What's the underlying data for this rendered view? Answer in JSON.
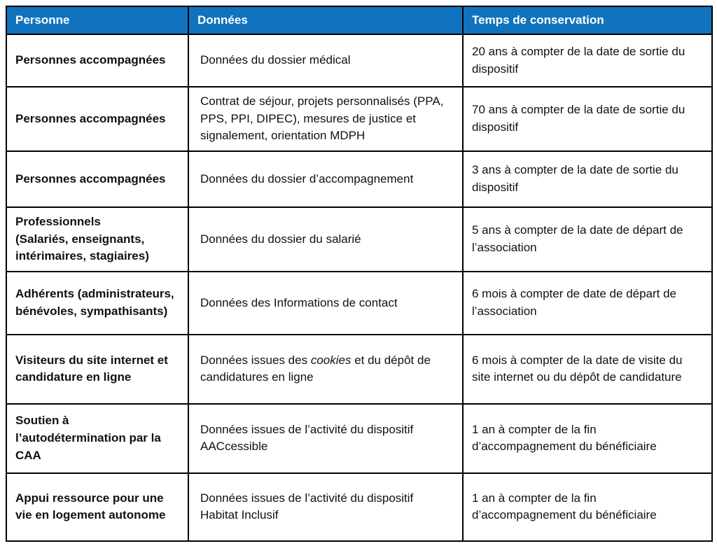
{
  "colors": {
    "header_bg": "#1173BD",
    "header_text": "#FFFFFF",
    "border": "#000000",
    "body_text": "#111111"
  },
  "table": {
    "headers": {
      "personne": "Personne",
      "donnees": "Données",
      "temps": "Temps de conservation"
    },
    "rows": [
      {
        "personne": "Personnes accompagnées",
        "donnees": [
          {
            "text": "Données du dossier médical",
            "italic": false
          }
        ],
        "temps": "20 ans à compter de la date de sortie du dispositif"
      },
      {
        "personne": "Personnes accompagnées",
        "donnees": [
          {
            "text": "Contrat de séjour, projets personnalisés (PPA, PPS, PPI, DIPEC), mesures de justice et signalement, orientation MDPH",
            "italic": false
          }
        ],
        "temps": "70 ans à compter de la date de sortie du dispositif"
      },
      {
        "personne": "Personnes accompagnées",
        "donnees": [
          {
            "text": "Données du dossier d’accompagnement",
            "italic": false
          }
        ],
        "temps": "3 ans à compter de la date de sortie du dispositif"
      },
      {
        "personne": "Professionnels\n(Salariés, enseignants, intérimaires, stagiaires)",
        "donnees": [
          {
            "text": "Données du dossier du salarié",
            "italic": false
          }
        ],
        "temps": "5 ans à compter de la date de départ de l’association"
      },
      {
        "personne": "Adhérents (administrateurs, bénévoles, sympathisants)",
        "donnees": [
          {
            "text": "Données des Informations de contact",
            "italic": false
          }
        ],
        "temps": "6 mois à compter de date de départ de l’association"
      },
      {
        "personne": "Visiteurs du site internet et candidature en ligne",
        "donnees": [
          {
            "text": "Données issues des ",
            "italic": false
          },
          {
            "text": "cookies",
            "italic": true
          },
          {
            "text": " et du dépôt de candidatures en ligne",
            "italic": false
          }
        ],
        "temps": "6 mois à compter de la date de visite du site internet ou du dépôt de candidature"
      },
      {
        "personne": "Soutien à l’autodétermination par la CAA",
        "donnees": [
          {
            "text": "Données issues de l’activité du dispositif AACcessible",
            "italic": false
          }
        ],
        "temps": "1 an à compter de la fin d’accompagnement du bénéficiaire"
      },
      {
        "personne": "Appui ressource pour une vie en logement autonome",
        "donnees": [
          {
            "text": "Données issues de l’activité du dispositif Habitat Inclusif",
            "italic": false
          }
        ],
        "temps": "1 an à compter de la fin d’accompagnement du bénéficiaire"
      }
    ]
  }
}
